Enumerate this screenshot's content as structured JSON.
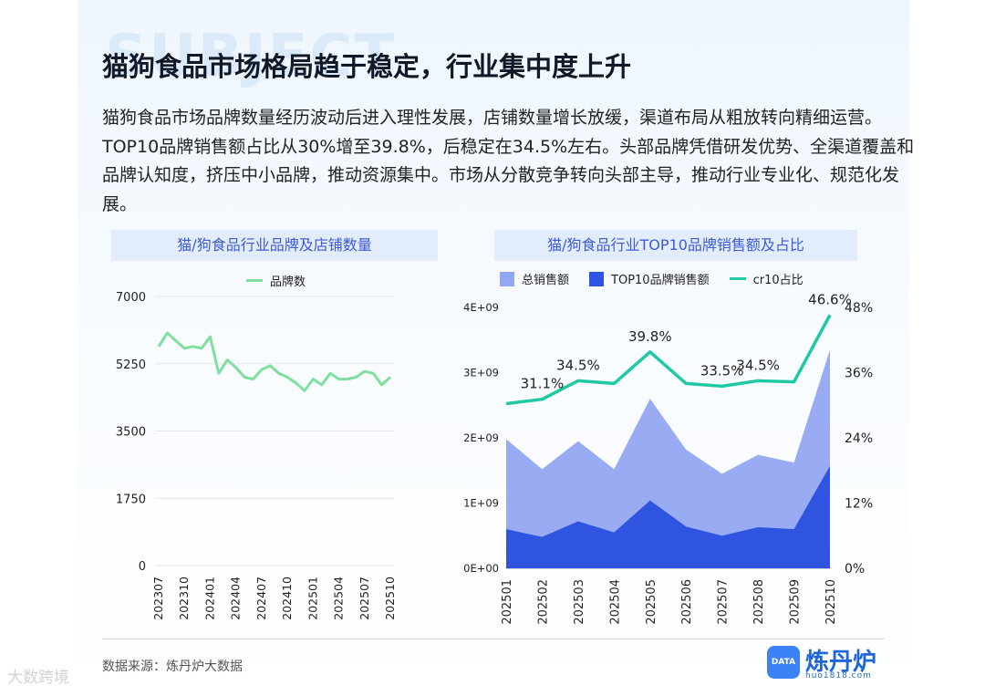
{
  "background_word": "SUBJECT",
  "title": "猫狗食品市场格局趋于稳定，行业集中度上升",
  "description": "猫狗食品市场品牌数量经历波动后进入理性发展，店铺数量增长放缓，渠道布局从粗放转向精细运营。TOP10品牌销售额占比从30%增至39.8%，后稳定在34.5%左右。头部品牌凭借研发优势、全渠道覆盖和品牌认知度，挤压中小品牌，推动资源集中。市场从分散竞争转向头部主导，推动行业专业化、规范化发展。",
  "colors": {
    "line_green": "#7fdf9e",
    "area_total": "#93a8f2",
    "area_top10": "#2f55e0",
    "line_cr10": "#1fc9a6"
  },
  "chart_data": [
    {
      "type": "line",
      "title": "猫/狗食品行业品牌及店铺数量",
      "x_tick_labels": [
        "202307",
        "202310",
        "202401",
        "202404",
        "202407",
        "202410",
        "202501",
        "202504",
        "202507",
        "202510"
      ],
      "x": [
        "202307",
        "202308",
        "202309",
        "202310",
        "202311",
        "202312",
        "202401",
        "202402",
        "202403",
        "202404",
        "202405",
        "202406",
        "202407",
        "202408",
        "202409",
        "202410",
        "202411",
        "202412",
        "202501",
        "202502",
        "202503",
        "202504",
        "202505",
        "202506",
        "202507",
        "202508",
        "202509",
        "202510"
      ],
      "series": [
        {
          "name": "品牌数",
          "values": [
            5700,
            6050,
            5850,
            5650,
            5700,
            5650,
            5950,
            5000,
            5350,
            5150,
            4900,
            4850,
            5100,
            5200,
            5000,
            4900,
            4750,
            4550,
            4850,
            4700,
            5000,
            4850,
            4850,
            4900,
            5050,
            5000,
            4700,
            4900
          ]
        }
      ],
      "ylim": [
        0,
        7000
      ],
      "y_ticks": [
        0,
        1750,
        3500,
        5250,
        7000
      ],
      "y_tick_labels": [
        "0",
        "1750",
        "3500",
        "5250",
        "7000"
      ],
      "grid": true,
      "legend": "top"
    },
    {
      "type": "area",
      "title": "猫/狗食品行业TOP10品牌销售额及占比",
      "categories": [
        "202501",
        "202502",
        "202503",
        "202504",
        "202505",
        "202506",
        "202507",
        "202508",
        "202509",
        "202510"
      ],
      "series": [
        {
          "name": "总销售额",
          "type": "area",
          "axis": "left",
          "values": [
            1980000000,
            1520000000,
            1950000000,
            1520000000,
            2600000000,
            1820000000,
            1450000000,
            1740000000,
            1620000000,
            3350000000
          ]
        },
        {
          "name": "TOP10品牌销售额",
          "type": "area",
          "axis": "left",
          "values": [
            600000000,
            480000000,
            720000000,
            550000000,
            1040000000,
            640000000,
            500000000,
            630000000,
            600000000,
            1570000000
          ]
        },
        {
          "name": "cr10占比",
          "type": "line",
          "axis": "right",
          "unit": "%",
          "values": [
            30.3,
            31.1,
            34.5,
            34.0,
            39.8,
            34.0,
            33.5,
            34.5,
            34.3,
            46.6
          ]
        }
      ],
      "data_labels": [
        {
          "index": 1,
          "text": "31.1%"
        },
        {
          "index": 2,
          "text": "34.5%"
        },
        {
          "index": 4,
          "text": "39.8%"
        },
        {
          "index": 6,
          "text": "33.5%"
        },
        {
          "index": 7,
          "text": "34.5%"
        },
        {
          "index": 9,
          "text": "46.6%"
        }
      ],
      "ylim_left": [
        0,
        4000000000
      ],
      "y_ticks_left": [
        0,
        1000000000,
        2000000000,
        3000000000,
        4000000000
      ],
      "y_tick_labels_left": [
        "0E+00",
        "1E+09",
        "2E+09",
        "3E+09",
        "4E+09"
      ],
      "ylim_right": [
        0,
        48
      ],
      "y_ticks_right": [
        0,
        12,
        24,
        36,
        48
      ],
      "y_tick_labels_right": [
        "0%",
        "12%",
        "24%",
        "36%",
        "48%"
      ],
      "grid": false,
      "legend": "top"
    }
  ],
  "footer": {
    "source": "数据来源：炼丹炉大数据",
    "logo_text": "炼丹炉",
    "logo_sub": "huo1818.com",
    "logo_icon_text": "DATA"
  },
  "watermark": "大数跨境"
}
